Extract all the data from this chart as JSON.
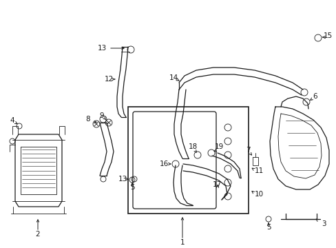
{
  "bg_color": "#ffffff",
  "fig_width": 4.89,
  "fig_height": 3.6,
  "dpi": 100,
  "col": "#1a1a1a"
}
